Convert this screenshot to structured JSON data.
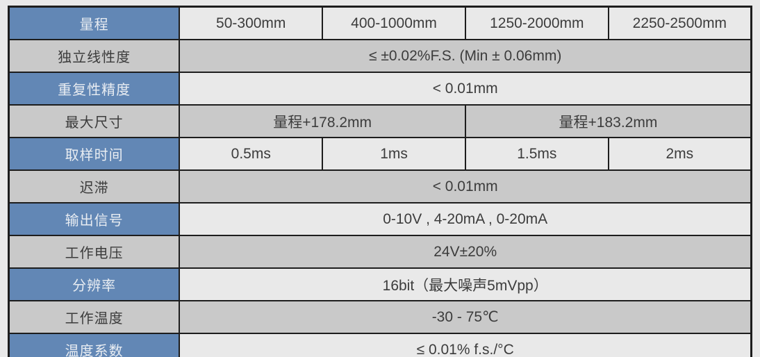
{
  "colors": {
    "page_bg": "#e9e9e9",
    "header_blue": "#6287b5",
    "cell_gray": "#c9c9c9",
    "cell_light": "#e9e9e9",
    "border": "#1d1d1d",
    "text_dark": "#3c3c3c",
    "text_light": "#e9edf2"
  },
  "spec_table": {
    "rows": [
      {
        "key": "range",
        "label": "量程",
        "variant": "blue",
        "cells": [
          {
            "text": "50-300mm",
            "span": 1
          },
          {
            "text": "400-1000mm",
            "span": 1
          },
          {
            "text": "1250-2000mm",
            "span": 1
          },
          {
            "text": "2250-2500mm",
            "span": 1
          }
        ]
      },
      {
        "key": "independent-linearity",
        "label": "独立线性度",
        "variant": "gray",
        "cells": [
          {
            "text": "≤ ±0.02%F.S. (Min ± 0.06mm)",
            "span": 4
          }
        ]
      },
      {
        "key": "repeatability",
        "label": "重复性精度",
        "variant": "blue",
        "cells": [
          {
            "text": "< 0.01mm",
            "span": 4
          }
        ]
      },
      {
        "key": "max-dimension",
        "label": "最大尺寸",
        "variant": "gray",
        "cells": [
          {
            "text": "量程+178.2mm",
            "span": 2
          },
          {
            "text": "量程+183.2mm",
            "span": 2
          }
        ]
      },
      {
        "key": "sampling-time",
        "label": "取样时间",
        "variant": "blue",
        "cells": [
          {
            "text": "0.5ms",
            "span": 1
          },
          {
            "text": "1ms",
            "span": 1
          },
          {
            "text": "1.5ms",
            "span": 1
          },
          {
            "text": "2ms",
            "span": 1
          }
        ]
      },
      {
        "key": "hysteresis",
        "label": "迟滞",
        "variant": "gray",
        "cells": [
          {
            "text": "< 0.01mm",
            "span": 4
          }
        ]
      },
      {
        "key": "output-signal",
        "label": "输出信号",
        "variant": "blue",
        "cells": [
          {
            "text": "0-10V , 4-20mA , 0-20mA",
            "span": 4
          }
        ]
      },
      {
        "key": "working-voltage",
        "label": "工作电压",
        "variant": "gray",
        "cells": [
          {
            "text": "24V±20%",
            "span": 4
          }
        ]
      },
      {
        "key": "resolution",
        "label": "分辨率",
        "variant": "blue",
        "cells": [
          {
            "text": "16bit（最大噪声5mVpp）",
            "span": 4
          }
        ]
      },
      {
        "key": "working-temperature",
        "label": "工作温度",
        "variant": "gray",
        "cells": [
          {
            "text": "-30 - 75℃",
            "span": 4
          }
        ]
      },
      {
        "key": "temperature-coefficient",
        "label": "温度系数",
        "variant": "blue",
        "cells": [
          {
            "text": "≤ 0.01% f.s./°C",
            "span": 4
          }
        ]
      }
    ]
  }
}
